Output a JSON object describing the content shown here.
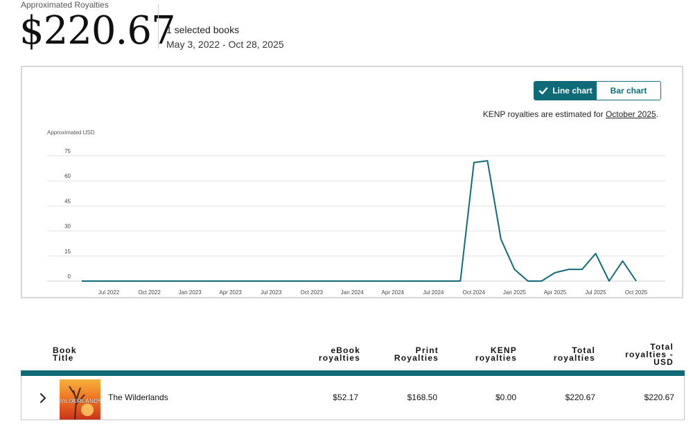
{
  "summary": {
    "label": "Approximated Royalties",
    "amount": "$220.67",
    "selected_books": "1 selected books",
    "date_range": "May 3, 2022 - Oct 28, 2025"
  },
  "chart_toggle": {
    "line_label": "Line chart",
    "bar_label": "Bar chart",
    "active": "line"
  },
  "kenp_note": {
    "text": "KENP royalties are estimated for ",
    "month": "October 2025",
    "suffix": "."
  },
  "chart_data": {
    "type": "line",
    "ylabel": "Approximated USD",
    "ylim": [
      0,
      75
    ],
    "yticks": [
      0,
      15,
      30,
      45,
      60,
      75
    ],
    "xtick_labels": [
      "Jul 2022",
      "Oct 2022",
      "Jan 2023",
      "Apr 2023",
      "Jul 2023",
      "Oct 2023",
      "Jan 2024",
      "Apr 2024",
      "Jul 2024",
      "Oct 2024",
      "Jan 2025",
      "Apr 2025",
      "Jul 2025",
      "Oct 2025"
    ],
    "months": [
      "May 2022",
      "Jun 2022",
      "Jul 2022",
      "Aug 2022",
      "Sep 2022",
      "Oct 2022",
      "Nov 2022",
      "Dec 2022",
      "Jan 2023",
      "Feb 2023",
      "Mar 2023",
      "Apr 2023",
      "May 2023",
      "Jun 2023",
      "Jul 2023",
      "Aug 2023",
      "Sep 2023",
      "Oct 2023",
      "Nov 2023",
      "Dec 2023",
      "Jan 2024",
      "Feb 2024",
      "Mar 2024",
      "Apr 2024",
      "May 2024",
      "Jun 2024",
      "Jul 2024",
      "Aug 2024",
      "Sep 2024",
      "Oct 2024",
      "Nov 2024",
      "Dec 2024",
      "Jan 2025",
      "Feb 2025",
      "Mar 2025",
      "Apr 2025",
      "May 2025",
      "Jun 2025",
      "Jul 2025",
      "Aug 2025",
      "Sep 2025",
      "Oct 2025"
    ],
    "values": [
      0,
      0,
      0,
      0,
      0,
      0,
      0,
      0,
      0,
      0,
      0,
      0,
      0,
      0,
      0,
      0,
      0,
      0,
      0,
      0,
      0,
      0,
      0,
      0,
      0,
      0,
      0,
      0,
      0,
      71,
      72,
      25,
      7,
      0,
      0,
      5,
      7,
      7,
      16.5,
      0,
      12,
      0
    ],
    "grid": true,
    "color": "#0f6b78"
  },
  "table": {
    "headers": {
      "title": [
        "Book",
        "Title"
      ],
      "ebook": [
        "eBook",
        "royalties"
      ],
      "print": [
        "Print",
        "Royalties"
      ],
      "kenp": [
        "KENP",
        "royalties"
      ],
      "total": [
        "Total",
        "royalties"
      ],
      "total_usd": [
        "Total",
        "royalties -",
        "USD"
      ]
    },
    "rows": [
      {
        "cover_text": "WILDERLANDS",
        "title": "The Wilderlands",
        "ebook": "$52.17",
        "print": "$168.50",
        "kenp": "$0.00",
        "total": "$220.67",
        "total_usd": "$220.67"
      }
    ]
  },
  "colors": {
    "accent": "#0f6b78",
    "grid": "#e2e2e2"
  },
  "icons": {
    "check": "check-icon",
    "expand": "chevron-right-icon"
  }
}
